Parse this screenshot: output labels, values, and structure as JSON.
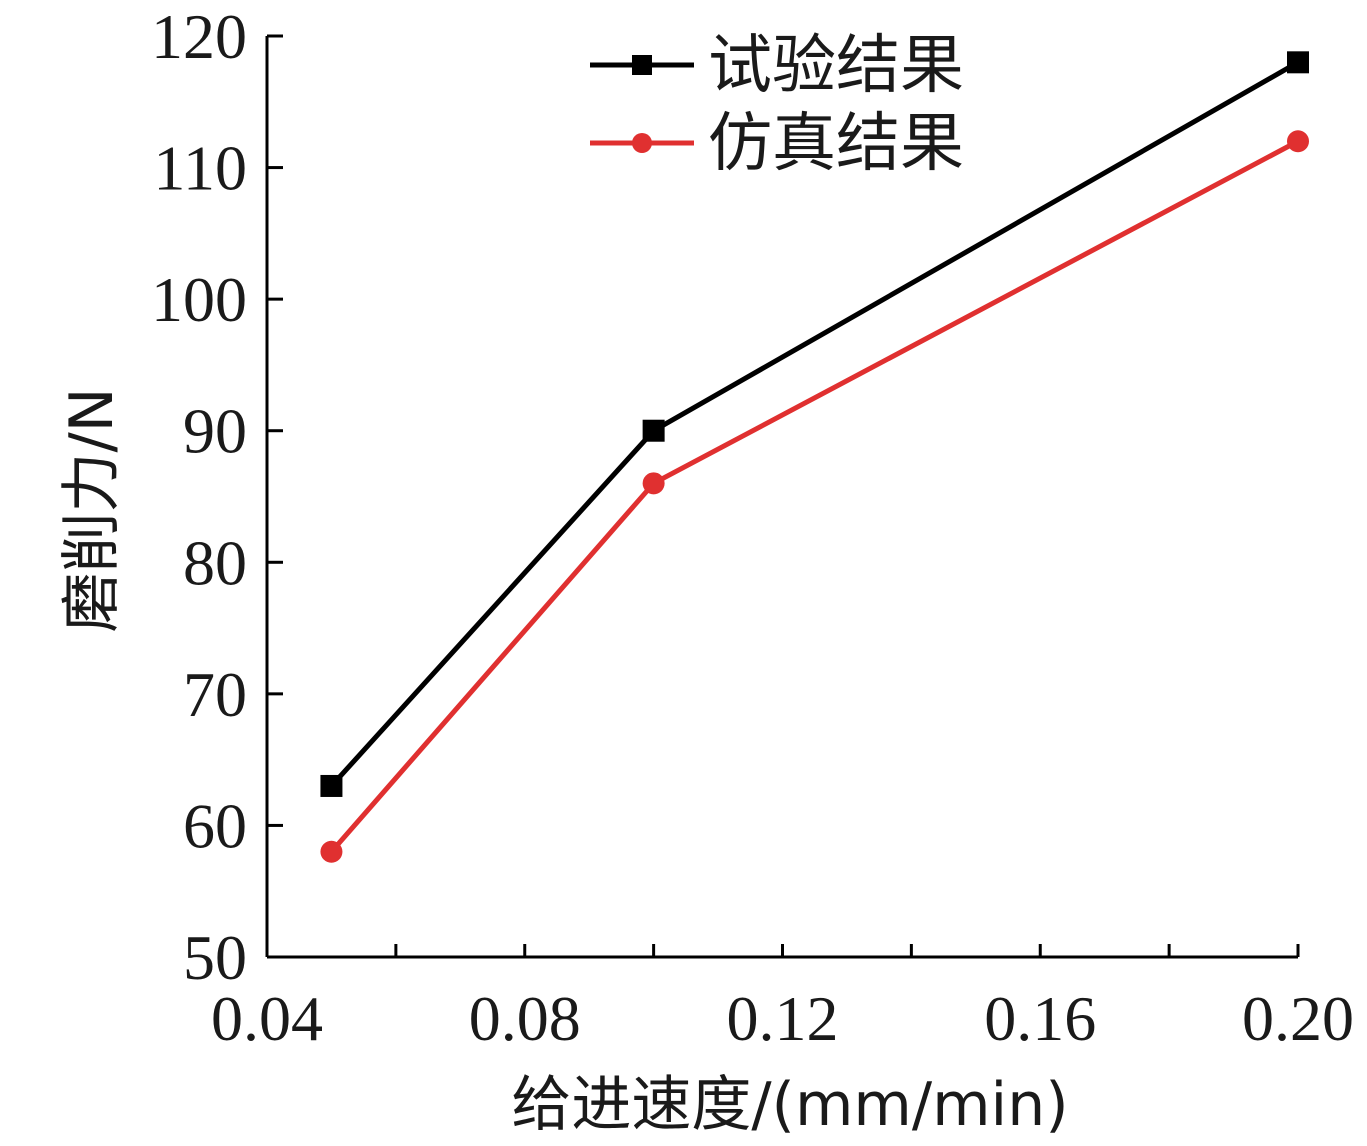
{
  "chart_data": {
    "type": "line",
    "xlabel": "给进速度/(mm/min)",
    "ylabel": "磨削力/N",
    "xlim": [
      0.04,
      0.2
    ],
    "ylim": [
      50,
      120
    ],
    "xticks": [
      "0.04",
      "0.08",
      "0.12",
      "0.16",
      "0.20"
    ],
    "xtick_values": [
      0.04,
      0.08,
      0.12,
      0.16,
      0.2
    ],
    "yticks": [
      "50",
      "60",
      "70",
      "80",
      "90",
      "100",
      "110",
      "120"
    ],
    "ytick_values": [
      50,
      60,
      70,
      80,
      90,
      100,
      110,
      120
    ],
    "x": [
      0.05,
      0.1,
      0.2
    ],
    "series": [
      {
        "name": "试验结果",
        "values": [
          63,
          90,
          118
        ],
        "color": "#000000",
        "marker": "square"
      },
      {
        "name": "仿真结果",
        "values": [
          58,
          86,
          112
        ],
        "color": "#e03030",
        "marker": "circle"
      }
    ],
    "legend_position": "top-center",
    "grid": false
  }
}
